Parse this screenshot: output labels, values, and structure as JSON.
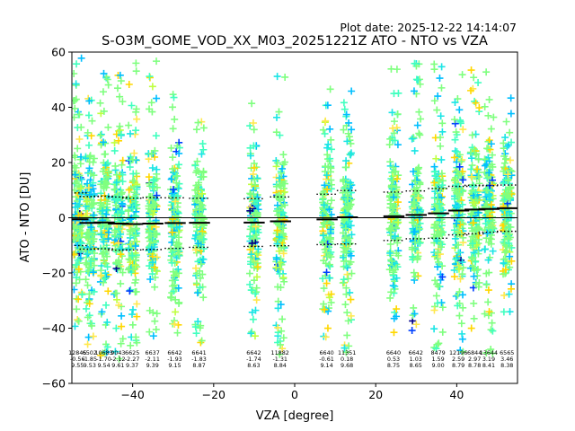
{
  "chart_data": {
    "type": "scatter",
    "title": "S-O3M_GOME_VOD_XX_M03_20251221Z ATO - NTO vs VZA",
    "plot_date": "Plot date: 2025-12-22 14:14:07",
    "xlabel": "VZA [degree]",
    "ylabel": "ATO - NTO [DU]",
    "xlim": [
      -55,
      55
    ],
    "ylim": [
      -60,
      60
    ],
    "xticks": [
      -40,
      -20,
      0,
      20,
      40
    ],
    "yticks": [
      -60,
      -40,
      -20,
      0,
      20,
      40,
      60
    ],
    "xtick_labels": [
      "−40",
      "−20",
      "0",
      "20",
      "40"
    ],
    "ytick_labels": [
      "−60",
      "−40",
      "−20",
      "0",
      "20",
      "40",
      "60"
    ],
    "zero_line": 0,
    "bins": [
      {
        "x": -53.5,
        "count": "12845",
        "mean": "-0.56",
        "std": "9.55",
        "ymin": -40,
        "ymax": 58
      },
      {
        "x": -50.5,
        "count": "6502",
        "mean": "-1.85",
        "std": "9.53",
        "ymin": -46,
        "ymax": 46
      },
      {
        "x": -47.0,
        "count": "10683",
        "mean": "-1.70",
        "std": "9.54",
        "ymin": -50,
        "ymax": 56
      },
      {
        "x": -43.5,
        "count": "9043",
        "mean": "-2.12",
        "std": "9.61",
        "ymin": -52,
        "ymax": 57
      },
      {
        "x": -40.0,
        "count": "6625",
        "mean": "-2.27",
        "std": "9.37",
        "ymin": -47,
        "ymax": 56
      },
      {
        "x": -35.0,
        "count": "6637",
        "mean": "-2.11",
        "std": "9.39",
        "ymin": -46,
        "ymax": 57
      },
      {
        "x": -29.5,
        "count": "6642",
        "mean": "-1.93",
        "std": "9.15",
        "ymin": -44,
        "ymax": 45
      },
      {
        "x": -23.5,
        "count": "6641",
        "mean": "-1.83",
        "std": "8.87",
        "ymin": -48,
        "ymax": 44
      },
      {
        "x": -10.0,
        "count": "6642",
        "mean": "-1.74",
        "std": "8.63",
        "ymin": -45,
        "ymax": 45
      },
      {
        "x": -3.5,
        "count": "11882",
        "mean": "-1.31",
        "std": "8.84",
        "ymin": -50,
        "ymax": 53
      },
      {
        "x": 8.0,
        "count": "6640",
        "mean": "-0.61",
        "std": "9.14",
        "ymin": -44,
        "ymax": 47
      },
      {
        "x": 13.0,
        "count": "11351",
        "mean": "0.18",
        "std": "9.68",
        "ymin": -52,
        "ymax": 49
      },
      {
        "x": 24.5,
        "count": "6640",
        "mean": "0.53",
        "std": "8.75",
        "ymin": -42,
        "ymax": 56
      },
      {
        "x": 30.0,
        "count": "6642",
        "mean": "1.03",
        "std": "8.65",
        "ymin": -42,
        "ymax": 58
      },
      {
        "x": 35.5,
        "count": "8479",
        "mean": "1.59",
        "std": "9.00",
        "ymin": -48,
        "ymax": 58
      },
      {
        "x": 40.5,
        "count": "12196",
        "mean": "2.59",
        "std": "8.79",
        "ymin": -50,
        "ymax": 55
      },
      {
        "x": 44.5,
        "count": "6844",
        "mean": "2.97",
        "std": "8.78",
        "ymin": -42,
        "ymax": 55
      },
      {
        "x": 48.0,
        "count": "13644",
        "mean": "3.19",
        "std": "8.41",
        "ymin": -50,
        "ymax": 55
      },
      {
        "x": 52.5,
        "count": "6565",
        "mean": "3.46",
        "std": "8.38",
        "ymin": -36,
        "ymax": 46
      }
    ],
    "scatter_colors": [
      "#7fff7f",
      "#40ffbf",
      "#1ae5e5",
      "#00bfff",
      "#ffd700",
      "#ffe84d",
      "#bfff40",
      "#0040ff",
      "#00008b"
    ]
  }
}
